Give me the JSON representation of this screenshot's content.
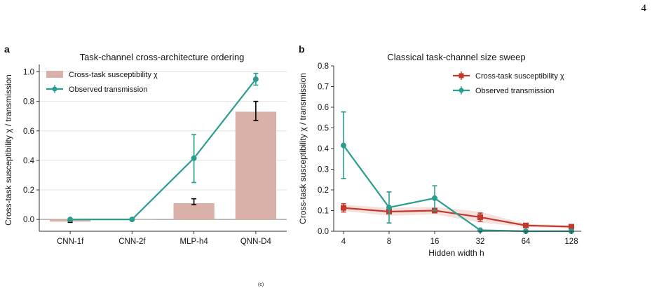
{
  "page_number": "4",
  "footer_mark": "(c)",
  "chart_data": [
    {
      "panel": "a",
      "type": "bar",
      "title": "Task-channel cross-architecture ordering",
      "xlabel": "",
      "ylabel": "Cross-task susceptibility χ / transmission",
      "categories": [
        "CNN-1f",
        "CNN-2f",
        "MLP-h4",
        "QNN-D4"
      ],
      "ylim": [
        -0.08,
        1.05
      ],
      "yticks": [
        "0.0",
        "0.2",
        "0.4",
        "0.6",
        "0.8",
        "1.0"
      ],
      "grid": "horizontal",
      "legend_position": "top-left",
      "series": [
        {
          "name": "Cross-task susceptibility χ",
          "kind": "bar",
          "color": "#d9b1a8",
          "values": [
            -0.015,
            0.0,
            0.11,
            0.73
          ],
          "err_low": [
            -0.02,
            0.0,
            0.1,
            0.67
          ],
          "err_high": [
            -0.01,
            0.0,
            0.14,
            0.8
          ]
        },
        {
          "name": "Observed transmission",
          "kind": "line",
          "color": "#2a9d8f",
          "values": [
            0.0,
            0.0,
            0.415,
            0.95
          ],
          "err_low": [
            0.0,
            0.0,
            0.25,
            0.91
          ],
          "err_high": [
            0.0,
            0.0,
            0.575,
            0.99
          ]
        }
      ]
    },
    {
      "panel": "b",
      "type": "line",
      "title": "Classical task-channel size sweep",
      "xlabel": "Hidden width h",
      "ylabel": "Cross-task susceptibility χ / transmission",
      "x": [
        "4",
        "8",
        "16",
        "32",
        "64",
        "128"
      ],
      "ylim": [
        0.0,
        0.8
      ],
      "yticks": [
        "0.0",
        "0.1",
        "0.2",
        "0.3",
        "0.4",
        "0.5",
        "0.6",
        "0.7",
        "0.8"
      ],
      "grid": "none",
      "legend_position": "top-right",
      "series": [
        {
          "name": "Cross-task susceptibility χ",
          "color": "#c0392b",
          "marker": "square",
          "values": [
            0.113,
            0.095,
            0.1,
            0.068,
            0.028,
            0.022
          ],
          "err_low": [
            0.093,
            0.088,
            0.092,
            0.048,
            0.024,
            0.018
          ],
          "err_high": [
            0.133,
            0.103,
            0.108,
            0.088,
            0.032,
            0.026
          ],
          "band_low": [
            0.098,
            0.075,
            0.082,
            0.042,
            0.02,
            0.015
          ],
          "band_high": [
            0.128,
            0.113,
            0.118,
            0.094,
            0.036,
            0.029
          ]
        },
        {
          "name": "Observed transmission",
          "color": "#2a9d8f",
          "marker": "circle",
          "values": [
            0.415,
            0.115,
            0.16,
            0.005,
            0.0,
            0.0
          ],
          "err_low": [
            0.255,
            0.04,
            0.1,
            0.0,
            0.0,
            0.0
          ],
          "err_high": [
            0.577,
            0.19,
            0.22,
            0.01,
            0.0,
            0.0
          ]
        }
      ]
    }
  ]
}
